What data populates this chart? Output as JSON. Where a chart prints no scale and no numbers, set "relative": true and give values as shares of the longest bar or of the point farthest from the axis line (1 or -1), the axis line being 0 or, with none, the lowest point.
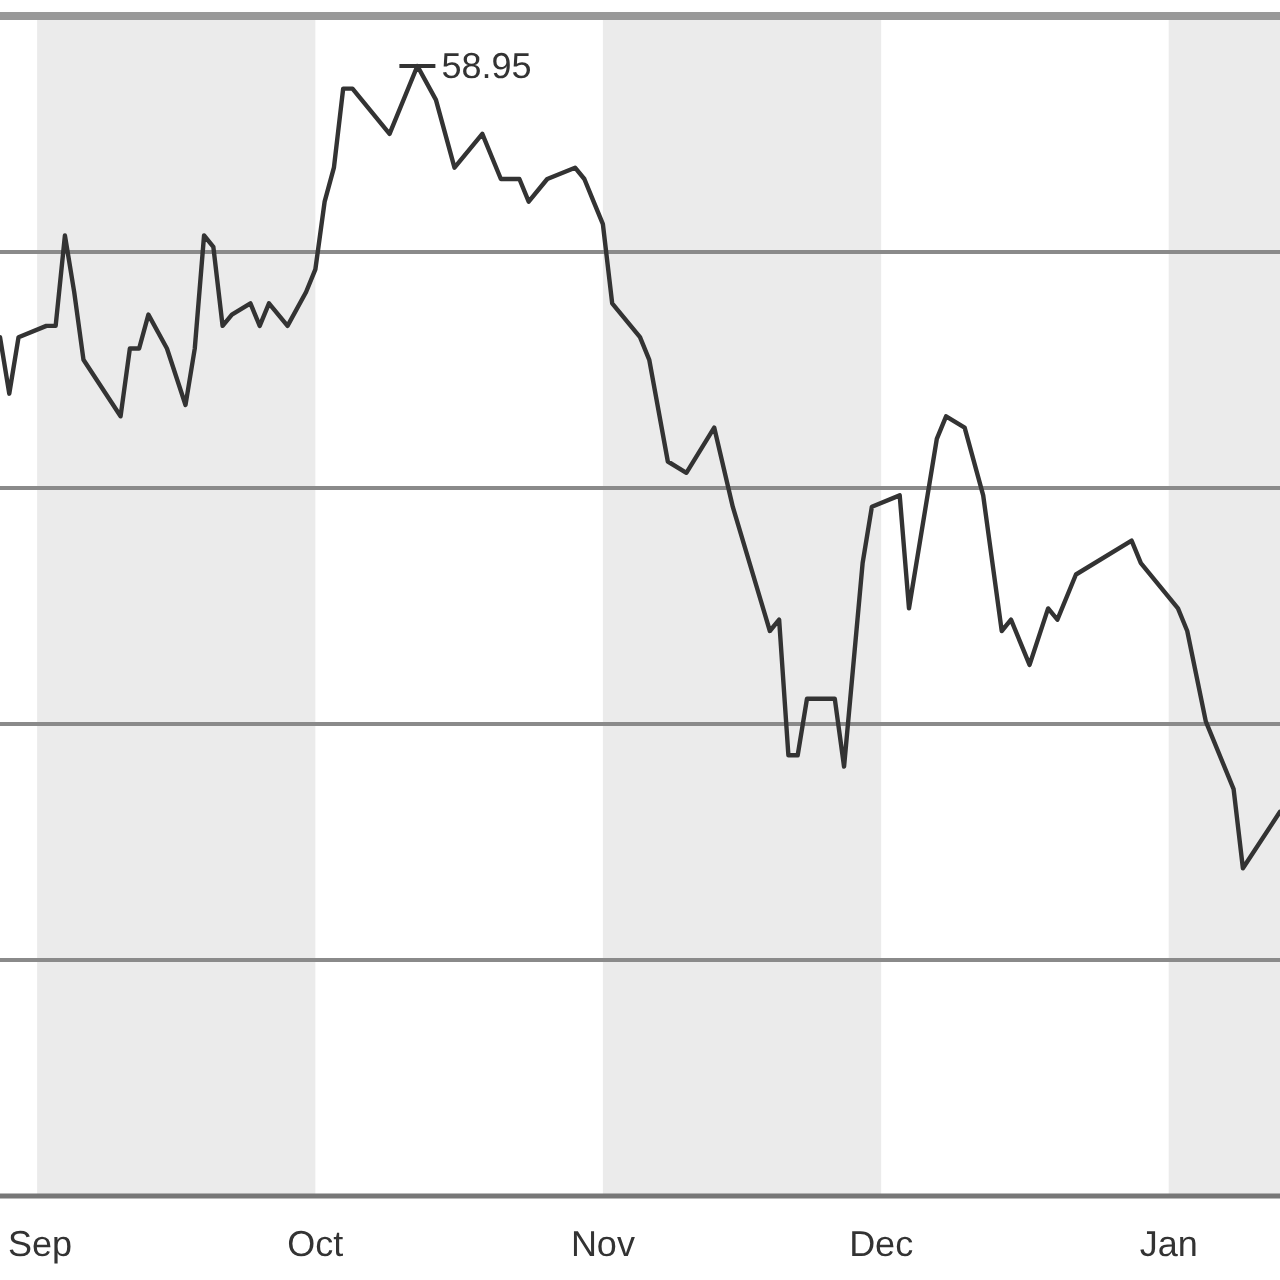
{
  "chart_data": {
    "type": "line",
    "relative": true,
    "grid": true,
    "categories": [
      null,
      null,
      null,
      null,
      "Sep",
      null,
      null,
      null,
      null,
      null,
      null,
      null,
      null,
      null,
      null,
      null,
      null,
      null,
      null,
      null,
      null,
      null,
      null,
      null,
      null,
      null,
      null,
      null,
      null,
      null,
      null,
      null,
      null,
      null,
      "Oct",
      null,
      null,
      null,
      null,
      null,
      null,
      null,
      null,
      null,
      null,
      null,
      null,
      null,
      null,
      null,
      null,
      null,
      null,
      null,
      null,
      null,
      null,
      null,
      null,
      null,
      null,
      null,
      null,
      null,
      null,
      "Nov",
      null,
      null,
      null,
      null,
      null,
      null,
      null,
      null,
      null,
      null,
      null,
      null,
      null,
      null,
      null,
      null,
      null,
      null,
      null,
      null,
      null,
      null,
      null,
      null,
      null,
      null,
      null,
      null,
      null,
      "Dec",
      null,
      null,
      null,
      null,
      null,
      null,
      null,
      null,
      null,
      null,
      null,
      null,
      null,
      null,
      null,
      null,
      null,
      null,
      null,
      null,
      null,
      null,
      null,
      null,
      null,
      null,
      null,
      null,
      null,
      null,
      "Jan",
      null,
      null,
      null,
      null,
      null,
      null,
      null,
      null,
      null,
      null,
      null,
      null
    ],
    "annotations": [
      "58.95"
    ],
    "series": [
      {
        "color": "#333333",
        "values": [
          0.76,
          0.71,
          0.76,
          null,
          null,
          0.77,
          0.77,
          0.85,
          0.8,
          0.74,
          null,
          null,
          null,
          0.69,
          0.75,
          0.75,
          0.78,
          null,
          0.75,
          null,
          0.7,
          0.75,
          0.85,
          0.84,
          0.77,
          0.78,
          null,
          0.79,
          0.77,
          0.79,
          null,
          0.77,
          null,
          0.8,
          0.82,
          0.88,
          0.91,
          0.98,
          0.98,
          null,
          null,
          null,
          0.94,
          null,
          null,
          1,
          null,
          0.97,
          null,
          0.91,
          null,
          null,
          0.94,
          null,
          0.9,
          null,
          0.9,
          0.88,
          null,
          0.9,
          null,
          null,
          0.91,
          0.9,
          0.88,
          0.86,
          0.79,
          0.78,
          null,
          0.76,
          0.74,
          null,
          0.65,
          null,
          0.64,
          null,
          null,
          0.68,
          null,
          0.61,
          null,
          null,
          null,
          0.5,
          0.51,
          0.39,
          0.39,
          0.44,
          null,
          null,
          0.44,
          0.38,
          null,
          0.56,
          0.61,
          null,
          null,
          0.62,
          0.52,
          null,
          null,
          0.67,
          0.69,
          null,
          0.68,
          null,
          0.62,
          null,
          0.5,
          0.51,
          null,
          0.47,
          null,
          0.52,
          0.51,
          null,
          0.55,
          null,
          null,
          null,
          null,
          null,
          0.58,
          0.56,
          null,
          null,
          null,
          0.52,
          0.5,
          null,
          0.42,
          null,
          null,
          0.36,
          0.29,
          null,
          null,
          null,
          0.34
        ]
      }
    ]
  }
}
